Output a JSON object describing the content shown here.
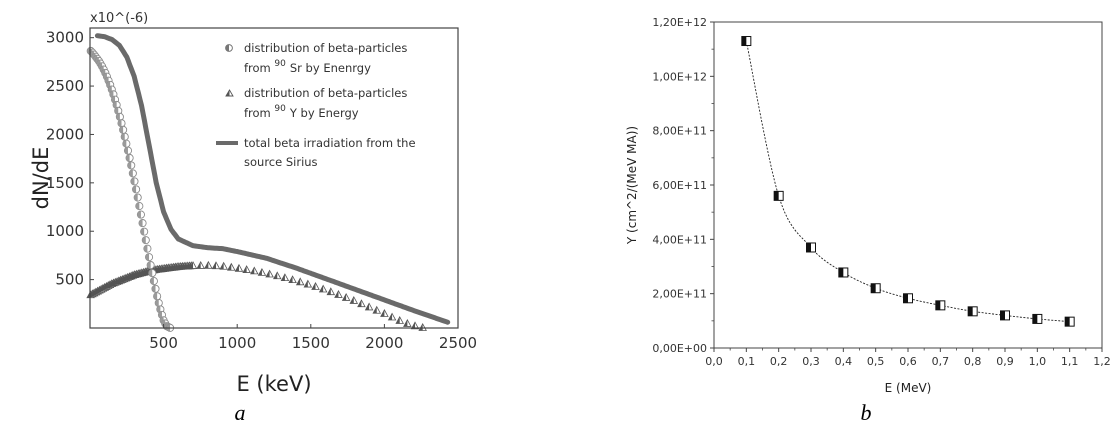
{
  "chart_data": [
    {
      "panel_label": "a",
      "type": "scatter",
      "xlabel": "E (keV)",
      "ylabel": "dN/dE",
      "y_multiplier": "x10^(-6)",
      "xlim": [
        0,
        2500
      ],
      "ylim": [
        0,
        3100
      ],
      "x_ticks": [
        500,
        1000,
        1500,
        2000,
        2500
      ],
      "y_ticks": [
        500,
        1000,
        1500,
        2000,
        2500,
        3000
      ],
      "grid": false,
      "legend_position": "top-right",
      "series": [
        {
          "name": "distribution of beta-particles from 90 Sr by Enenrgy",
          "legend_lines": [
            "distribution of beta-particles",
            "from  ",
            "Sr by Enenrgy"
          ],
          "isotope_mass": "90",
          "marker": "half-filled-circle",
          "x": [
            0,
            20,
            40,
            60,
            80,
            100,
            120,
            140,
            160,
            180,
            200,
            220,
            240,
            260,
            280,
            300,
            320,
            340,
            360,
            380,
            400,
            420,
            440,
            460,
            480,
            500,
            520,
            546
          ],
          "y": [
            2870,
            2840,
            2800,
            2760,
            2710,
            2650,
            2580,
            2500,
            2410,
            2310,
            2200,
            2080,
            1950,
            1820,
            1680,
            1530,
            1380,
            1220,
            1060,
            900,
            740,
            590,
            440,
            300,
            180,
            80,
            20,
            0
          ]
        },
        {
          "name": "distribution of beta-particles from 90 Y by Energy",
          "legend_lines": [
            "distribution of beta-particles",
            "from ",
            "Y  by Energy"
          ],
          "isotope_mass": "90",
          "marker": "half-filled-triangle",
          "x": [
            0,
            50,
            100,
            150,
            200,
            250,
            300,
            350,
            400,
            450,
            500,
            550,
            600,
            700,
            800,
            900,
            1000,
            1100,
            1200,
            1300,
            1400,
            1500,
            1600,
            1700,
            1800,
            1900,
            2000,
            2050,
            2100,
            2150,
            2200,
            2250,
            2280
          ],
          "y": [
            340,
            380,
            420,
            460,
            490,
            520,
            550,
            570,
            590,
            605,
            615,
            625,
            635,
            645,
            648,
            640,
            620,
            595,
            565,
            530,
            490,
            445,
            395,
            340,
            280,
            215,
            150,
            115,
            80,
            50,
            25,
            8,
            0
          ]
        },
        {
          "name": "total beta irradiation from the source Sirius",
          "legend_lines": [
            "total beta irradiation from the",
            "source Sirius"
          ],
          "marker": "line",
          "x": [
            50,
            100,
            150,
            200,
            250,
            300,
            350,
            400,
            450,
            500,
            550,
            600,
            700,
            800,
            900,
            1000,
            1200,
            1400,
            1600,
            1800,
            2000,
            2200,
            2430
          ],
          "y": [
            3020,
            3010,
            2980,
            2920,
            2800,
            2600,
            2300,
            1900,
            1500,
            1200,
            1020,
            920,
            850,
            830,
            820,
            790,
            720,
            620,
            510,
            400,
            290,
            180,
            60
          ]
        }
      ]
    },
    {
      "panel_label": "b",
      "type": "line",
      "xlabel": "E (MeV)",
      "ylabel": "Y (cm^2/(MeV MA))",
      "xlim": [
        0,
        1.2
      ],
      "ylim": [
        0,
        1200000000000.0
      ],
      "x_ticks": [
        "0,0",
        "0,1",
        "0,2",
        "0,3",
        "0,4",
        "0,5",
        "0,6",
        "0,7",
        "0,8",
        "0,9",
        "1,0",
        "1,1",
        "1,2"
      ],
      "y_ticks": [
        "0,00E+00",
        "2,00E+11",
        "4,00E+11",
        "6,00E+11",
        "8,00E+11",
        "1,00E+12",
        "1,20E+12"
      ],
      "grid": false,
      "marker": "half-filled-square",
      "series": [
        {
          "x": [
            0.1,
            0.2,
            0.3,
            0.4,
            0.5,
            0.6,
            0.7,
            0.8,
            0.9,
            1.0,
            1.1
          ],
          "y": [
            1130000000000.0,
            560000000000.0,
            370000000000.0,
            278000000000.0,
            220000000000.0,
            183000000000.0,
            157000000000.0,
            135000000000.0,
            120000000000.0,
            107000000000.0,
            97000000000.0
          ]
        }
      ]
    }
  ]
}
